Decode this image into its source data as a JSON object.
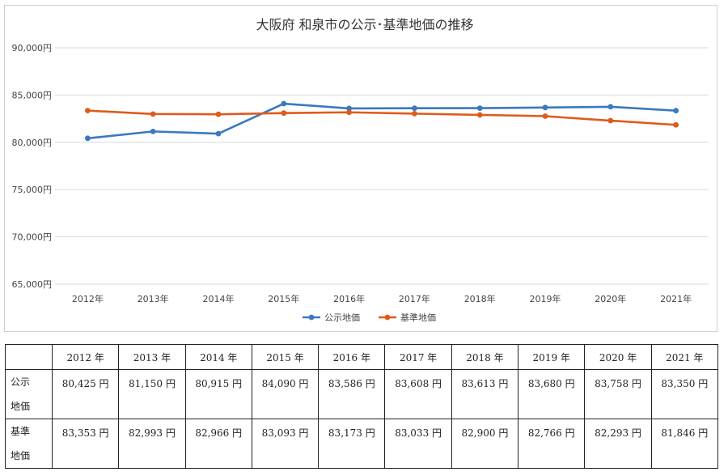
{
  "chart_data": {
    "type": "line",
    "title": "大阪府 和泉市の公示･基準地価の推移",
    "categories": [
      "2012年",
      "2013年",
      "2014年",
      "2015年",
      "2016年",
      "2017年",
      "2018年",
      "2019年",
      "2020年",
      "2021年"
    ],
    "series": [
      {
        "name": "公示地価",
        "color": "#3b78c1",
        "values": [
          80425,
          81150,
          80915,
          84090,
          83586,
          83608,
          83613,
          83680,
          83758,
          83350
        ]
      },
      {
        "name": "基準地価",
        "color": "#e05a1b",
        "values": [
          83353,
          82993,
          82966,
          83093,
          83173,
          83033,
          82900,
          82766,
          82293,
          81846
        ]
      }
    ],
    "ylim": [
      65000,
      90000
    ],
    "yticks": [
      "65,000円",
      "70,000円",
      "75,000円",
      "80,000円",
      "85,000円",
      "90,000円"
    ],
    "ytick_values": [
      65000,
      70000,
      75000,
      80000,
      85000,
      90000
    ],
    "grid": true,
    "legend_position": "bottom"
  },
  "table": {
    "header": [
      "",
      "2012 年",
      "2013 年",
      "2014 年",
      "2015 年",
      "2016 年",
      "2017 年",
      "2018 年",
      "2019 年",
      "2020 年",
      "2021 年"
    ],
    "rows": [
      {
        "label": [
          "公示",
          "地価"
        ],
        "cells": [
          "80,425 円",
          "81,150 円",
          "80,915 円",
          "84,090 円",
          "83,586 円",
          "83,608 円",
          "83,613 円",
          "83,680 円",
          "83,758 円",
          "83,350 円"
        ]
      },
      {
        "label": [
          "基準",
          "地価"
        ],
        "cells": [
          "83,353 円",
          "82,993 円",
          "82,966 円",
          "83,093 円",
          "83,173 円",
          "83,033 円",
          "82,900 円",
          "82,766 円",
          "82,293 円",
          "81,846 円"
        ]
      }
    ]
  }
}
